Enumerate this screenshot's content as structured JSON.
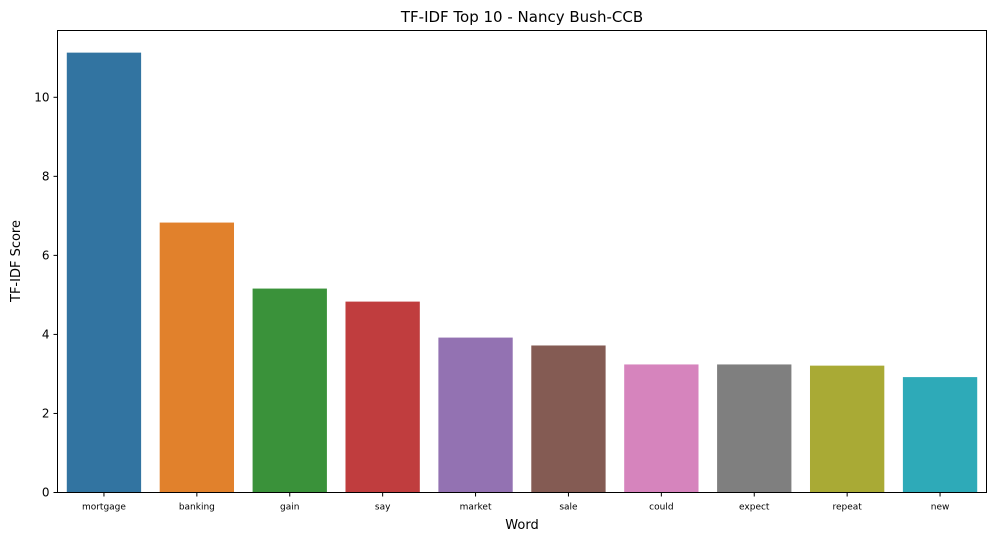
{
  "chart_data": {
    "type": "bar",
    "title": "TF-IDF Top 10 - Nancy Bush-CCB",
    "xlabel": "Word",
    "ylabel": "TF-IDF Score",
    "categories": [
      "mortgage",
      "banking",
      "gain",
      "say",
      "market",
      "sale",
      "could",
      "expect",
      "repeat",
      "new"
    ],
    "values": [
      11.13,
      6.83,
      5.16,
      4.83,
      3.92,
      3.72,
      3.24,
      3.24,
      3.21,
      2.92
    ],
    "colors": [
      "#3274a1",
      "#e1812c",
      "#3a923a",
      "#c03d3e",
      "#9372b2",
      "#845b53",
      "#d684bd",
      "#7f7f7f",
      "#a9aa35",
      "#2eaab8"
    ],
    "yticks": [
      0,
      2,
      4,
      6,
      8,
      10
    ],
    "ylim": [
      0,
      11.69
    ],
    "grid": false,
    "legend": "none"
  }
}
